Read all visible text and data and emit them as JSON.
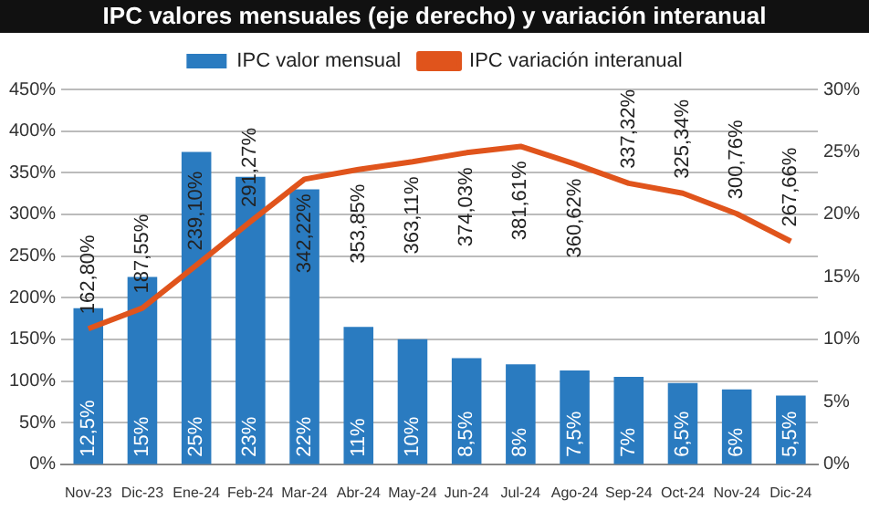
{
  "chart_data": {
    "type": "bar",
    "title": "IPC valores mensuales (eje derecho) y variación interanual",
    "categories": [
      "Nov-23",
      "Dic-23",
      "Ene-24",
      "Feb-24",
      "Mar-24",
      "Abr-24",
      "May-24",
      "Jun-24",
      "Jul-24",
      "Ago-24",
      "Sep-24",
      "Oct-24",
      "Nov-24",
      "Dic-24"
    ],
    "series": [
      {
        "name": "IPC valor mensual",
        "axis": "y2",
        "color": "#2a7bc0",
        "values": [
          12.5,
          15,
          25,
          23,
          22,
          11,
          10,
          8.5,
          8,
          7.5,
          7,
          6.5,
          6,
          5.5
        ],
        "value_labels": [
          "12,5%",
          "15%",
          "25%",
          "23%",
          "22%",
          "11%",
          "10%",
          "8,5%",
          "8%",
          "7,5%",
          "7%",
          "6,5%",
          "6%",
          "5,5%"
        ]
      },
      {
        "name": "IPC variación interanual",
        "type": "line",
        "color": "#e0541c",
        "values": [
          162.8,
          187.55,
          239.1,
          291.27,
          342.22,
          353.85,
          363.11,
          374.03,
          381.61,
          360.62,
          337.32,
          325.34,
          300.76,
          267.66
        ],
        "value_labels": [
          "162,80%",
          "187,55%",
          "239,10%",
          "291,27%",
          "342,22%",
          "353,85%",
          "363,11%",
          "374,03%",
          "381,61%",
          "360,62%",
          "337,32%",
          "325,34%",
          "300,76%",
          "267,66%"
        ]
      }
    ],
    "ylim": [
      0,
      450
    ],
    "yticks": [
      {
        "value": 0,
        "label": "0%"
      },
      {
        "value": 50,
        "label": "50%"
      },
      {
        "value": 100,
        "label": "100%"
      },
      {
        "value": 150,
        "label": "150%"
      },
      {
        "value": 200,
        "label": "200%"
      },
      {
        "value": 250,
        "label": "250%"
      },
      {
        "value": 300,
        "label": "300%"
      },
      {
        "value": 350,
        "label": "350%"
      },
      {
        "value": 400,
        "label": "400%"
      },
      {
        "value": 450,
        "label": "450%"
      }
    ],
    "y2lim": [
      0,
      30
    ],
    "y2ticks": [
      {
        "value": 0,
        "label": "0%"
      },
      {
        "value": 5,
        "label": "5%"
      },
      {
        "value": 10,
        "label": "10%"
      },
      {
        "value": 15,
        "label": "15%"
      },
      {
        "value": 20,
        "label": "20%"
      },
      {
        "value": 25,
        "label": "25%"
      },
      {
        "value": 30,
        "label": "30%"
      }
    ],
    "grid": "y",
    "legend": "top",
    "marker": "none",
    "line_style": "solid"
  }
}
